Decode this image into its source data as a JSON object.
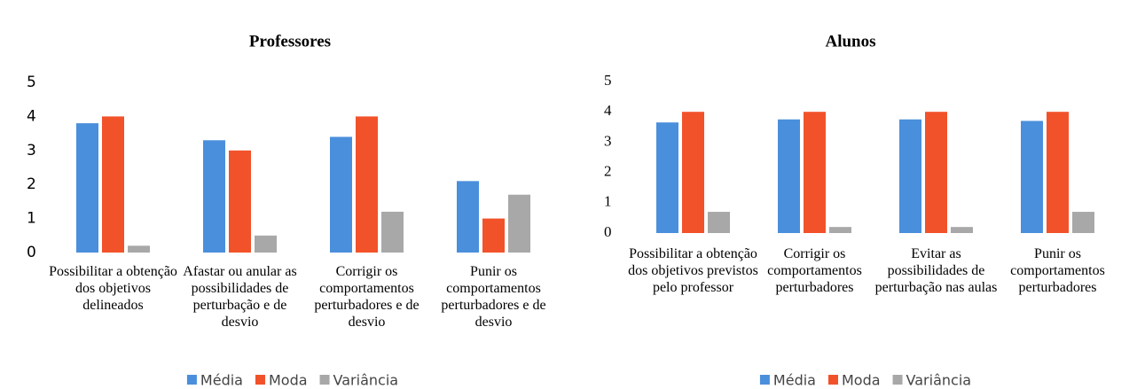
{
  "chart_data": [
    {
      "type": "bar",
      "title": "Professores",
      "categories": [
        "Possibilitar a obtenção dos objetivos delineados",
        "Afastar ou anular as possibilidades de perturbação e de desvio",
        "Corrigir os comportamentos perturbadores e de desvio",
        "Punir os comportamentos perturbadores e de desvio"
      ],
      "series": [
        {
          "name": "Média",
          "color": "#4a8fdc",
          "values": [
            3.8,
            3.3,
            3.4,
            2.1
          ]
        },
        {
          "name": "Moda",
          "color": "#f2522a",
          "values": [
            4,
            3,
            4,
            1
          ]
        },
        {
          "name": "Variância",
          "color": "#a8a8a8",
          "values": [
            0.2,
            0.5,
            1.2,
            1.7
          ]
        }
      ],
      "ylim": [
        0,
        5
      ],
      "yticks": [
        0,
        1,
        2,
        3,
        4,
        5
      ],
      "grid": false,
      "legend": "bottom"
    },
    {
      "type": "bar",
      "title": "Alunos",
      "categories": [
        "Possibilitar a obtenção dos objetivos previstos pelo professor",
        "Corrigir os comportamentos perturbadores",
        "Evitar as possibilidades de perturbação nas aulas",
        "Punir os comportamentos perturbadores"
      ],
      "series": [
        {
          "name": "Média",
          "color": "#4a8fdc",
          "values": [
            3.65,
            3.75,
            3.75,
            3.7
          ]
        },
        {
          "name": "Moda",
          "color": "#f2522a",
          "values": [
            4,
            4,
            4,
            4
          ]
        },
        {
          "name": "Variância",
          "color": "#a8a8a8",
          "values": [
            0.7,
            0.2,
            0.2,
            0.7
          ]
        }
      ],
      "ylim": [
        0,
        5
      ],
      "yticks": [
        0,
        1,
        2,
        3,
        4,
        5
      ],
      "grid": false,
      "legend": "bottom"
    }
  ]
}
